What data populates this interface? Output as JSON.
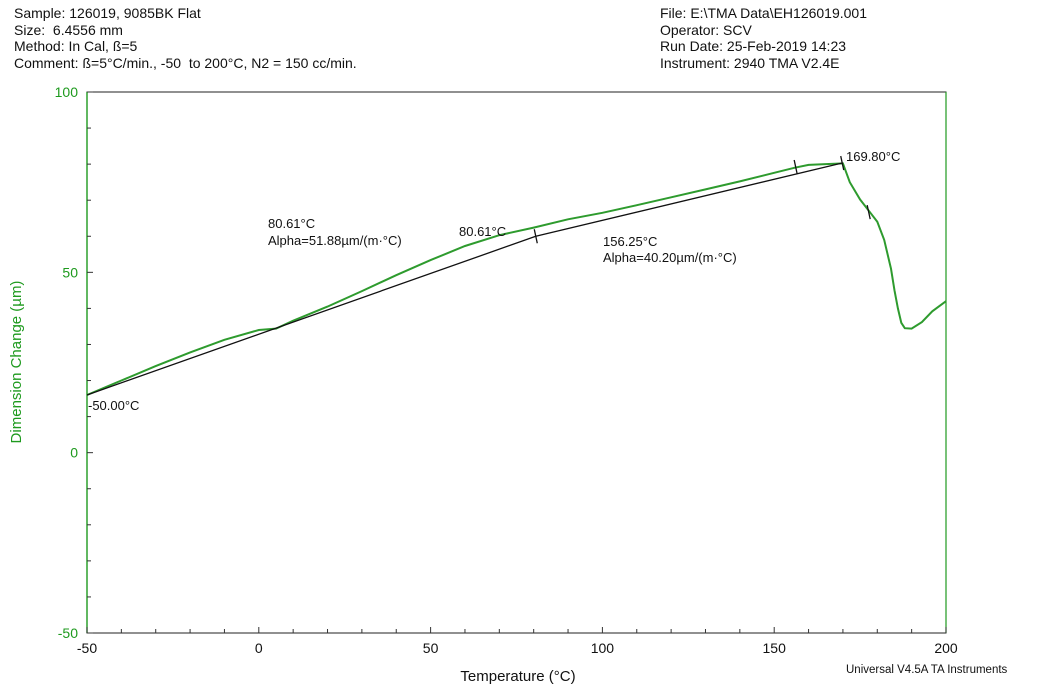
{
  "header": {
    "left": [
      "Sample: 126019, 9085BK Flat",
      "Size:  6.4556 mm",
      "Method: In Cal, ß=5",
      "Comment: ß=5°C/min., -50  to 200°C, N2 = 150 cc/min."
    ],
    "right": [
      "File: E:\\TMA Data\\EH126019.001",
      "Operator: SCV",
      "Run Date: 25-Feb-2019 14:23",
      "Instrument: 2940 TMA V2.4E"
    ]
  },
  "footer": "Universal V4.5A TA Instruments",
  "chart_data": {
    "type": "line",
    "title": "",
    "xlabel": "Temperature (°C)",
    "ylabel": "Dimension Change (µm)",
    "xlim": [
      -50,
      200
    ],
    "ylim": [
      -50,
      100
    ],
    "x_ticks": [
      -50,
      0,
      50,
      100,
      150,
      200
    ],
    "y_ticks": [
      -50,
      0,
      50,
      100
    ],
    "grid": false,
    "legend": "none",
    "colors": {
      "curve": "#2e9b2e",
      "fit": "#111111",
      "y_axis": "#1e9a1e"
    },
    "series": [
      {
        "x": [
          -50,
          -40,
          -30,
          -20,
          -10,
          0,
          5,
          10,
          20,
          30,
          40,
          50,
          60,
          70,
          80,
          90,
          100,
          110,
          120,
          130,
          140,
          150,
          156,
          160,
          165,
          170,
          172,
          175,
          178,
          180,
          182,
          184,
          185,
          186,
          187,
          188,
          190,
          193,
          196,
          200
        ],
        "y": [
          16,
          20,
          24,
          27.8,
          31.3,
          34.0,
          34.4,
          36.6,
          40.5,
          44.8,
          49.2,
          53.4,
          57.3,
          60.3,
          62.4,
          64.7,
          66.5,
          68.6,
          70.8,
          73.0,
          75.2,
          77.6,
          79.0,
          79.8,
          80.0,
          80.2,
          75,
          70.2,
          66.5,
          64.0,
          59.0,
          51.0,
          45.0,
          40.0,
          36.0,
          34.5,
          34.4,
          36.2,
          39.2,
          42.0
        ]
      }
    ],
    "fit_lines": [
      {
        "x": [
          -50,
          80.61
        ],
        "y": [
          16,
          60
        ]
      },
      {
        "x": [
          80.61,
          169.8
        ],
        "y": [
          60,
          80.3
        ]
      }
    ],
    "markers": [
      {
        "x": 80.61,
        "y": 60
      },
      {
        "x": 156.25,
        "y": 79.2
      },
      {
        "x": 169.8,
        "y": 80.3
      },
      {
        "x": 177.5,
        "y": 66.7
      }
    ],
    "annotations": {
      "left_onset": "-50.00°C",
      "seg1_temp": "80.61°C",
      "seg1_alpha": "Alpha=51.88µm/(m·°C)",
      "point_temp": "80.61°C",
      "seg2_temp": "156.25°C",
      "seg2_alpha": "Alpha=40.20µm/(m·°C)",
      "end_temp": "169.80°C"
    }
  }
}
